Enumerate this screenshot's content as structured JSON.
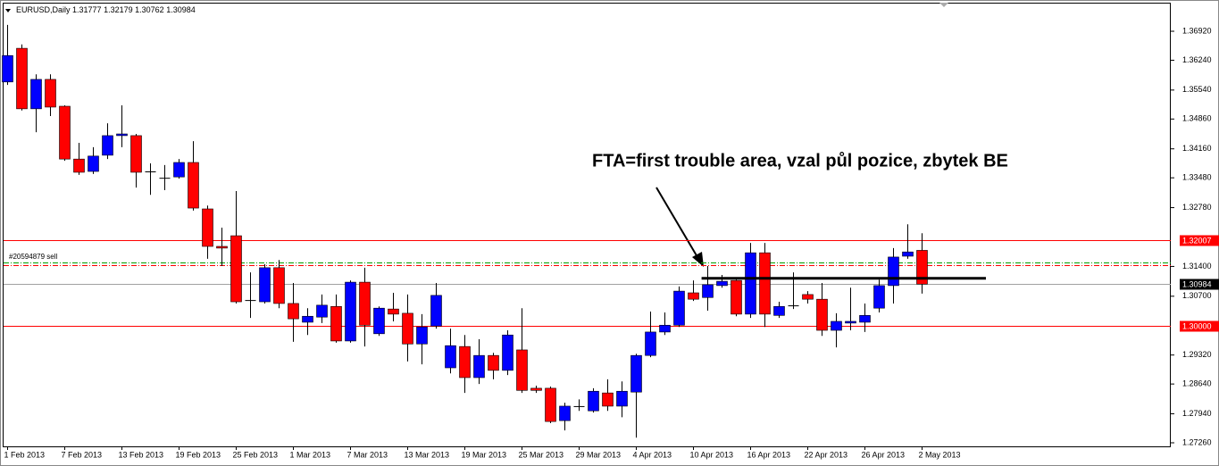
{
  "chart_data": {
    "type": "candlestick",
    "symbol": "EURUSD,Daily",
    "annotation": "FTA=first trouble area, vzal půl pozice, zbytek BE",
    "order_label": "#20594879 sell",
    "bull_color": "#0000ff",
    "bear_color": "#ff0000",
    "categories": [
      "1 Feb 2013",
      null,
      null,
      null,
      "7 Feb 2013",
      null,
      null,
      null,
      "13 Feb 2013",
      null,
      null,
      null,
      "19 Feb 2013",
      null,
      null,
      null,
      "25 Feb 2013",
      null,
      null,
      null,
      "1 Mar 2013",
      null,
      null,
      null,
      "7 Mar 2013",
      null,
      null,
      null,
      "13 Mar 2013",
      null,
      null,
      null,
      "19 Mar 2013",
      null,
      null,
      null,
      "25 Mar 2013",
      null,
      null,
      null,
      "29 Mar 2013",
      null,
      null,
      null,
      "4 Apr 2013",
      null,
      null,
      null,
      "10 Apr 2013",
      null,
      null,
      null,
      "16 Apr 2013",
      null,
      null,
      null,
      "22 Apr 2013",
      null,
      null,
      null,
      "26 Apr 2013",
      null,
      null,
      null,
      "2 May 2013"
    ],
    "ohlc": [
      [
        1.3573,
        1.3707,
        1.3566,
        1.3635
      ],
      [
        1.3652,
        1.3661,
        1.3506,
        1.351
      ],
      [
        1.351,
        1.3591,
        1.3455,
        1.3579
      ],
      [
        1.3579,
        1.3591,
        1.3493,
        1.3514
      ],
      [
        1.3516,
        1.3518,
        1.3388,
        1.3392
      ],
      [
        1.3392,
        1.343,
        1.3355,
        1.3361
      ],
      [
        1.3363,
        1.342,
        1.3357,
        1.3399
      ],
      [
        1.3401,
        1.3476,
        1.3392,
        1.3447
      ],
      [
        1.3447,
        1.3518,
        1.342,
        1.3451
      ],
      [
        1.3447,
        1.3451,
        1.3325,
        1.3361
      ],
      [
        1.3361,
        1.3382,
        1.3308,
        1.3363
      ],
      [
        1.3348,
        1.3378,
        1.3319,
        1.3346
      ],
      [
        1.335,
        1.3392,
        1.3346,
        1.3384
      ],
      [
        1.3384,
        1.3434,
        1.3271,
        1.3277
      ],
      [
        1.3275,
        1.3283,
        1.3158,
        1.3187
      ],
      [
        1.3187,
        1.3231,
        1.3141,
        1.3183
      ],
      [
        1.3212,
        1.3317,
        1.3053,
        1.3057
      ],
      [
        1.3059,
        1.3126,
        1.3019,
        1.3061
      ],
      [
        1.3057,
        1.3145,
        1.3053,
        1.3137
      ],
      [
        1.3137,
        1.3155,
        1.3042,
        1.3053
      ],
      [
        1.3053,
        1.3101,
        1.2963,
        1.3017
      ],
      [
        1.3009,
        1.3042,
        1.2979,
        1.3023
      ],
      [
        1.3021,
        1.3074,
        1.3007,
        1.3049
      ],
      [
        1.3046,
        1.3074,
        1.2961,
        1.2965
      ],
      [
        1.2965,
        1.3107,
        1.2961,
        1.3103
      ],
      [
        1.3103,
        1.3137,
        1.2952,
        1.3002
      ],
      [
        1.2982,
        1.3046,
        1.2977,
        1.3042
      ],
      [
        1.304,
        1.3078,
        1.3011,
        1.3028
      ],
      [
        1.303,
        1.3074,
        1.2917,
        1.2958
      ],
      [
        1.2958,
        1.3028,
        1.291,
        1.2998
      ],
      [
        1.3,
        1.3101,
        1.2994,
        1.3072
      ],
      [
        1.2902,
        1.2994,
        1.2889,
        1.2954
      ],
      [
        1.2952,
        1.2979,
        1.2843,
        1.2879
      ],
      [
        1.2879,
        1.2969,
        1.2864,
        1.2931
      ],
      [
        1.2931,
        1.2937,
        1.2875,
        1.2896
      ],
      [
        1.2896,
        1.299,
        1.2885,
        1.2979
      ],
      [
        1.2944,
        1.3042,
        1.2843,
        1.2849
      ],
      [
        1.2854,
        1.286,
        1.2843,
        1.2849
      ],
      [
        1.2854,
        1.2858,
        1.2772,
        1.2776
      ],
      [
        1.2778,
        1.282,
        1.2755,
        1.2812
      ],
      [
        1.281,
        1.2828,
        1.2801,
        1.2812
      ],
      [
        1.2801,
        1.2854,
        1.2797,
        1.2847
      ],
      [
        1.2843,
        1.2875,
        1.2801,
        1.2812
      ],
      [
        1.2812,
        1.287,
        1.2786,
        1.2847
      ],
      [
        1.2845,
        1.2935,
        1.2738,
        1.2931
      ],
      [
        1.2931,
        1.3034,
        1.2927,
        1.2986
      ],
      [
        1.2986,
        1.3032,
        1.2979,
        1.3002
      ],
      [
        1.3002,
        1.3093,
        1.2998,
        1.3082
      ],
      [
        1.3078,
        1.3107,
        1.3059,
        1.3063
      ],
      [
        1.3067,
        1.3141,
        1.3036,
        1.3097
      ],
      [
        1.3095,
        1.312,
        1.309,
        1.3105
      ],
      [
        1.3107,
        1.3109,
        1.3023,
        1.3028
      ],
      [
        1.3028,
        1.3195,
        1.3019,
        1.3172
      ],
      [
        1.3172,
        1.3195,
        1.2998,
        1.3028
      ],
      [
        1.3025,
        1.3057,
        1.3019,
        1.3046
      ],
      [
        1.3046,
        1.3126,
        1.304,
        1.3049
      ],
      [
        1.3074,
        1.3082,
        1.3053,
        1.3063
      ],
      [
        1.3063,
        1.3101,
        1.2977,
        1.299
      ],
      [
        1.299,
        1.303,
        1.295,
        1.3011
      ],
      [
        1.3007,
        1.309,
        1.299,
        1.3011
      ],
      [
        1.3009,
        1.3053,
        1.2986,
        1.3025
      ],
      [
        1.3042,
        1.3109,
        1.3032,
        1.3095
      ],
      [
        1.3095,
        1.3183,
        1.3053,
        1.3162
      ],
      [
        1.3164,
        1.3239,
        1.3158,
        1.3174
      ],
      [
        1.31777,
        1.32179,
        1.30762,
        1.30984
      ]
    ],
    "xlim": [
      -0.5,
      81.375
    ],
    "ylim": [
      1.27176,
      1.37549
    ],
    "yticks": [
      {
        "value": 1.2726,
        "label": "1.27260"
      },
      {
        "value": 1.2794,
        "label": "1.27940"
      },
      {
        "value": 1.2864,
        "label": "1.28640"
      },
      {
        "value": 1.2932,
        "label": "1.29320"
      },
      {
        "value": 1.307,
        "label": "1.30700"
      },
      {
        "value": 1.314,
        "label": "1.31400"
      },
      {
        "value": 1.3278,
        "label": "1.32780"
      },
      {
        "value": 1.3348,
        "label": "1.33480"
      },
      {
        "value": 1.3416,
        "label": "1.34160"
      },
      {
        "value": 1.3486,
        "label": "1.34860"
      },
      {
        "value": 1.3554,
        "label": "1.35540"
      },
      {
        "value": 1.3624,
        "label": "1.36240"
      },
      {
        "value": 1.3692,
        "label": "1.36920"
      }
    ],
    "levels": [
      {
        "value": 1.32007,
        "color": "#ff0000",
        "box": "#ff0000"
      },
      {
        "value": 1.3,
        "label": "1.30000",
        "color": "#ff0000",
        "box": "#ff0000"
      },
      {
        "value": 1.30984,
        "color": "#a0a0a0",
        "box": "#000000"
      },
      {
        "value": 1.3149,
        "color": "#00a000",
        "dash": true
      },
      {
        "value": 1.3143,
        "color": "#ff0000",
        "dash": true
      }
    ],
    "trendline": {
      "value": 1.3112,
      "from": 48.6,
      "to": 68.5,
      "color": "#000000"
    }
  }
}
